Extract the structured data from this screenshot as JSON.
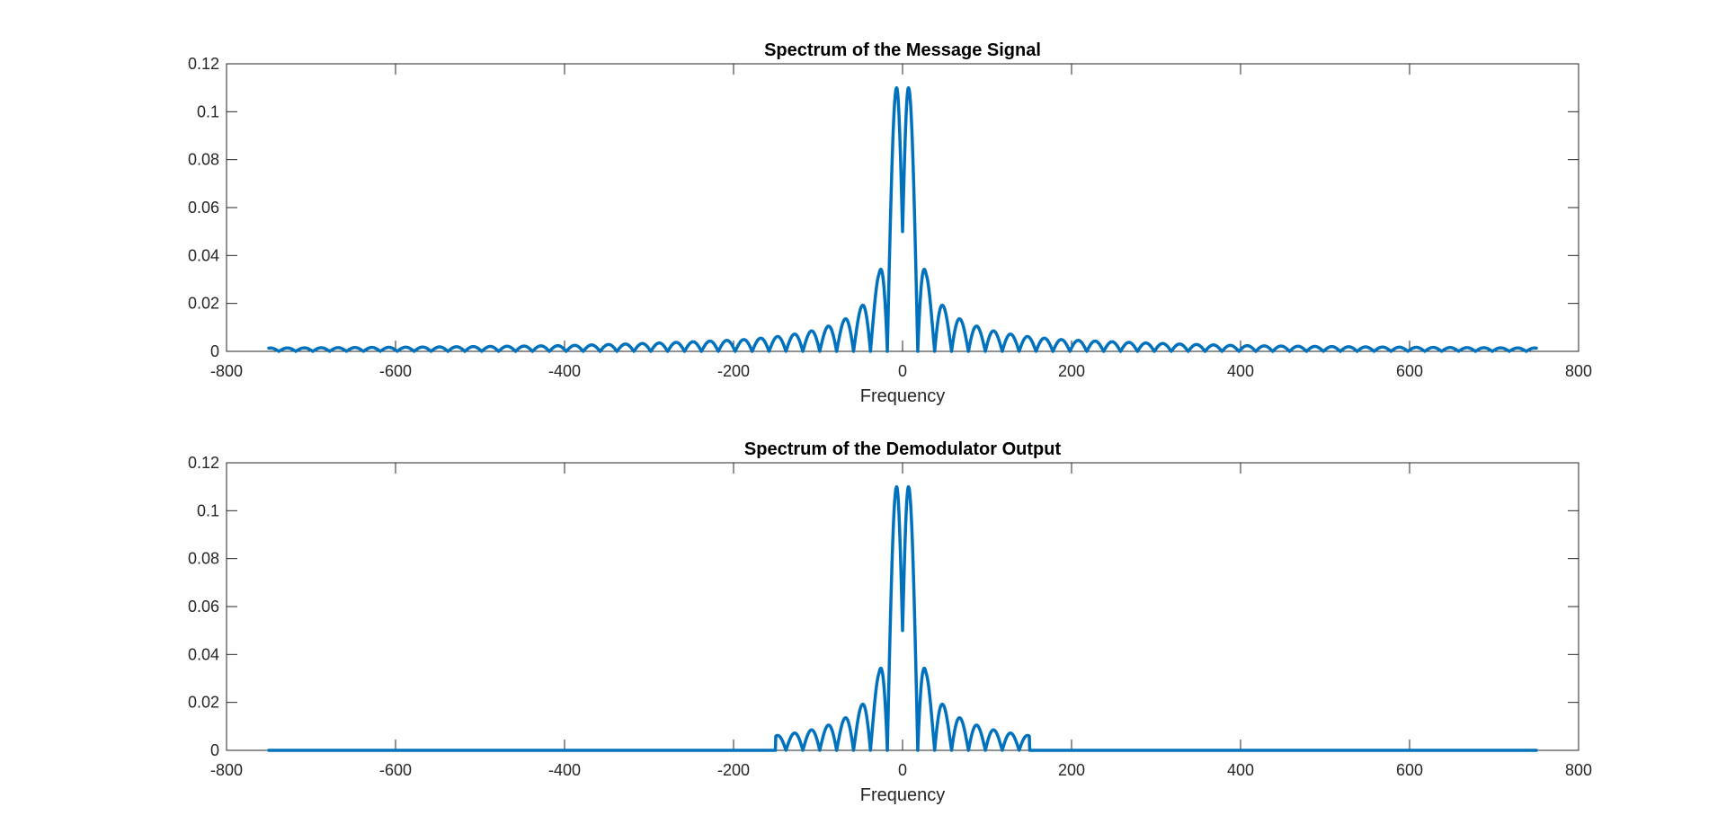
{
  "figure": {
    "background": "#ffffff",
    "axis_color": "#262626",
    "line_color": "#0072bd"
  },
  "chart_data": [
    {
      "type": "line",
      "title": "Spectrum of the Message Signal",
      "xlabel": "Frequency",
      "ylabel": "",
      "xlim": [
        -800,
        800
      ],
      "ylim": [
        0,
        0.12
      ],
      "xticks": [
        -800,
        -600,
        -400,
        -200,
        0,
        200,
        400,
        600,
        800
      ],
      "yticks": [
        0,
        0.02,
        0.04,
        0.06,
        0.08,
        0.1,
        0.12
      ],
      "xtick_labels": [
        "-800",
        "-600",
        "-400",
        "-200",
        "0",
        "200",
        "400",
        "600",
        "800"
      ],
      "ytick_labels": [
        "0",
        "0.02",
        "0.04",
        "0.06",
        "0.08",
        "0.1",
        "0.12"
      ],
      "grid": false,
      "series": [
        {
          "color": "#0072bd",
          "x_range": [
            -750,
            750
          ],
          "center_dip": {
            "x": 0,
            "y": 0.05
          },
          "peaks": [
            {
              "x": -7,
              "y": 0.11
            },
            {
              "x": 7,
              "y": 0.11
            },
            {
              "x": -28,
              "y": 0.032
            },
            {
              "x": 28,
              "y": 0.032
            },
            {
              "x": -48,
              "y": 0.019
            },
            {
              "x": 48,
              "y": 0.019
            },
            {
              "x": -68,
              "y": 0.0135
            },
            {
              "x": 68,
              "y": 0.0135
            },
            {
              "x": -88,
              "y": 0.0105
            },
            {
              "x": 88,
              "y": 0.0105
            },
            {
              "x": -108,
              "y": 0.0085
            },
            {
              "x": 108,
              "y": 0.0085
            },
            {
              "x": -128,
              "y": 0.0072
            },
            {
              "x": 128,
              "y": 0.0072
            },
            {
              "x": -148,
              "y": 0.0062
            },
            {
              "x": 148,
              "y": 0.0062
            },
            {
              "x": -168,
              "y": 0.0055
            },
            {
              "x": 168,
              "y": 0.0055
            },
            {
              "x": -188,
              "y": 0.0049
            },
            {
              "x": 188,
              "y": 0.0049
            },
            {
              "x": -400,
              "y": 0.0024
            },
            {
              "x": 400,
              "y": 0.0024
            },
            {
              "x": -600,
              "y": 0.0017
            },
            {
              "x": 600,
              "y": 0.0017
            },
            {
              "x": -740,
              "y": 0.0014
            },
            {
              "x": 740,
              "y": 0.0014
            }
          ],
          "lobe_period": 20,
          "cutoff": null
        }
      ]
    },
    {
      "type": "line",
      "title": "Spectrum of the Demodulator Output",
      "xlabel": "Frequency",
      "ylabel": "",
      "xlim": [
        -800,
        800
      ],
      "ylim": [
        0,
        0.12
      ],
      "xticks": [
        -800,
        -600,
        -400,
        -200,
        0,
        200,
        400,
        600,
        800
      ],
      "yticks": [
        0,
        0.02,
        0.04,
        0.06,
        0.08,
        0.1,
        0.12
      ],
      "xtick_labels": [
        "-800",
        "-600",
        "-400",
        "-200",
        "0",
        "200",
        "400",
        "600",
        "800"
      ],
      "ytick_labels": [
        "0",
        "0.02",
        "0.04",
        "0.06",
        "0.08",
        "0.1",
        "0.12"
      ],
      "grid": false,
      "series": [
        {
          "color": "#0072bd",
          "x_range": [
            -750,
            750
          ],
          "center_dip": {
            "x": 0,
            "y": 0.05
          },
          "peaks": [
            {
              "x": -7,
              "y": 0.11
            },
            {
              "x": 7,
              "y": 0.11
            },
            {
              "x": -28,
              "y": 0.032
            },
            {
              "x": 28,
              "y": 0.032
            },
            {
              "x": -48,
              "y": 0.019
            },
            {
              "x": 48,
              "y": 0.019
            },
            {
              "x": -68,
              "y": 0.0135
            },
            {
              "x": 68,
              "y": 0.0135
            },
            {
              "x": -88,
              "y": 0.0105
            },
            {
              "x": 88,
              "y": 0.0105
            },
            {
              "x": -108,
              "y": 0.0085
            },
            {
              "x": 108,
              "y": 0.0085
            },
            {
              "x": -128,
              "y": 0.0072
            },
            {
              "x": 128,
              "y": 0.0072
            },
            {
              "x": -148,
              "y": 0.0062
            },
            {
              "x": 148,
              "y": 0.0062
            }
          ],
          "lobe_period": 20,
          "cutoff": 150
        }
      ]
    }
  ]
}
